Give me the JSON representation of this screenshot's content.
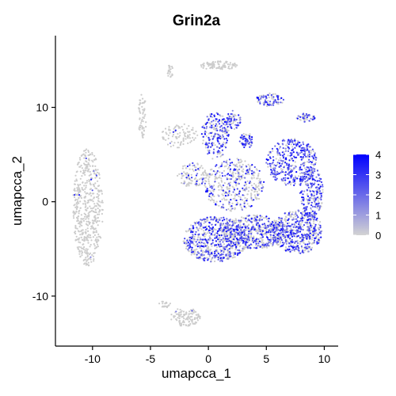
{
  "chart_data": {
    "type": "scatter",
    "title": "Grin2a",
    "xlabel": "umapcca_1",
    "ylabel": "umapcca_2",
    "xlim": [
      -13.2,
      11.2
    ],
    "ylim": [
      -15.3,
      17.6
    ],
    "x_ticks": [
      -10,
      -5,
      0,
      5,
      10
    ],
    "y_ticks": [
      -10,
      0,
      10
    ],
    "x_tick_labels": [
      "-10",
      "-5",
      "0",
      "5",
      "10"
    ],
    "y_tick_labels": [
      "-10",
      "0",
      "10"
    ],
    "grid": false,
    "legend": {
      "placement": "right",
      "type": "colorbar",
      "range": [
        0,
        4
      ],
      "ticks": [
        0,
        1,
        2,
        3,
        4
      ],
      "tick_labels": [
        "0",
        "1",
        "2",
        "3",
        "4"
      ],
      "low_color": "#d3d3d3",
      "high_color": "#0000ff"
    },
    "clusters": [
      {
        "cx": -10.4,
        "cy": -0.6,
        "rx": 1.3,
        "ry": 6.2,
        "n": 520,
        "expr": 0.01
      },
      {
        "cx": 0.9,
        "cy": 14.4,
        "rx": 1.6,
        "ry": 0.5,
        "n": 90,
        "expr": 0.0
      },
      {
        "cx": -3.3,
        "cy": 13.8,
        "rx": 0.25,
        "ry": 0.7,
        "n": 25,
        "expr": 0.0
      },
      {
        "cx": -5.7,
        "cy": 9.0,
        "rx": 0.35,
        "ry": 2.4,
        "n": 60,
        "expr": 0.0
      },
      {
        "cx": -2.5,
        "cy": 7.0,
        "rx": 1.6,
        "ry": 1.3,
        "n": 90,
        "expr": 0.05
      },
      {
        "cx": 0.6,
        "cy": 7.0,
        "rx": 1.2,
        "ry": 2.5,
        "n": 220,
        "expr": 0.6
      },
      {
        "cx": 2.2,
        "cy": 8.7,
        "rx": 0.6,
        "ry": 1.0,
        "n": 60,
        "expr": 0.6
      },
      {
        "cx": 5.3,
        "cy": 10.8,
        "rx": 1.2,
        "ry": 0.7,
        "n": 90,
        "expr": 0.6
      },
      {
        "cx": 8.4,
        "cy": 8.9,
        "rx": 0.8,
        "ry": 0.45,
        "n": 50,
        "expr": 0.55
      },
      {
        "cx": 3.3,
        "cy": 6.5,
        "rx": 0.6,
        "ry": 0.8,
        "n": 60,
        "expr": 0.7
      },
      {
        "cx": 7.2,
        "cy": 4.2,
        "rx": 2.2,
        "ry": 2.5,
        "n": 380,
        "expr": 0.75
      },
      {
        "cx": 8.9,
        "cy": 1.0,
        "rx": 1.0,
        "ry": 2.8,
        "n": 230,
        "expr": 0.7
      },
      {
        "cx": 2.2,
        "cy": 1.8,
        "rx": 2.6,
        "ry": 2.8,
        "n": 420,
        "expr": 0.3
      },
      {
        "cx": -1.3,
        "cy": 2.8,
        "rx": 1.4,
        "ry": 1.3,
        "n": 110,
        "expr": 0.25
      },
      {
        "cx": 0.6,
        "cy": -4.0,
        "rx": 2.8,
        "ry": 2.4,
        "n": 650,
        "expr": 0.5
      },
      {
        "cx": 4.0,
        "cy": -3.2,
        "rx": 2.8,
        "ry": 1.8,
        "n": 520,
        "expr": 0.45
      },
      {
        "cx": 7.7,
        "cy": -3.2,
        "rx": 2.2,
        "ry": 2.3,
        "n": 520,
        "expr": 0.55
      },
      {
        "cx": -2.0,
        "cy": -12.2,
        "rx": 1.3,
        "ry": 1.0,
        "n": 110,
        "expr": 0.05
      },
      {
        "cx": -3.8,
        "cy": -10.9,
        "rx": 0.6,
        "ry": 0.4,
        "n": 20,
        "expr": 0.0
      }
    ]
  }
}
